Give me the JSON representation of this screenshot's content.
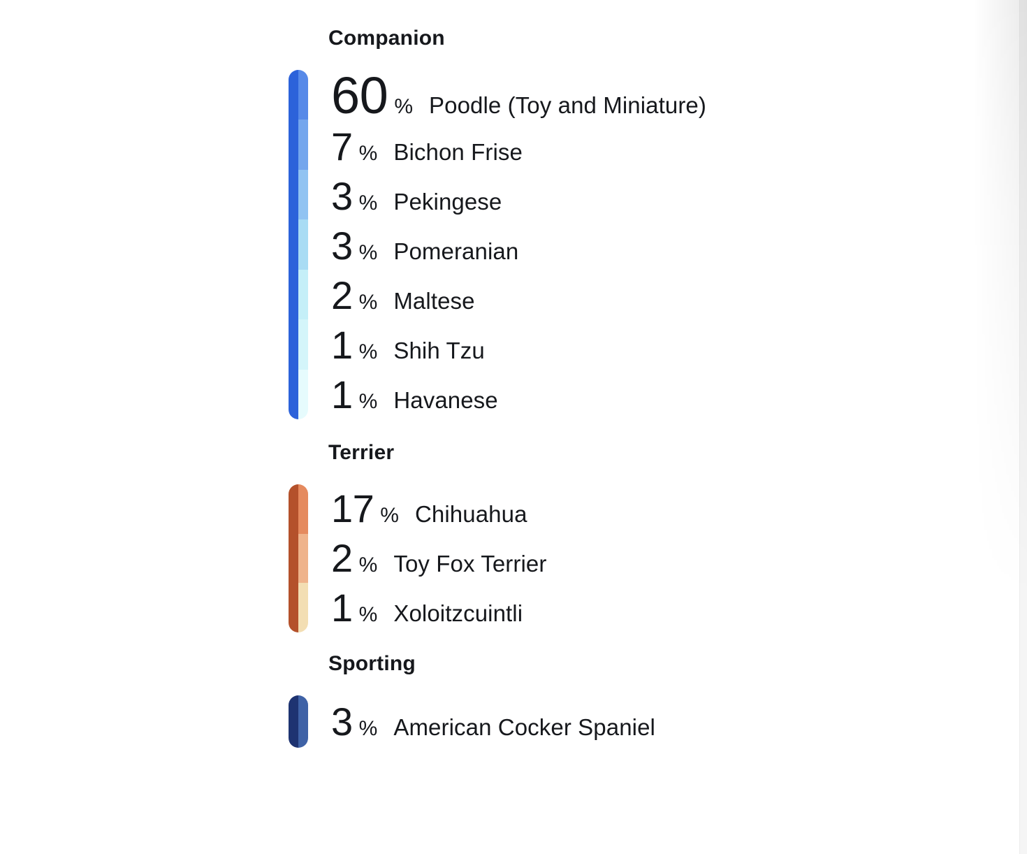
{
  "colors": {
    "text": "#16181c",
    "background": "#ffffff",
    "scrollbar_track": "#f5f5f5"
  },
  "chart_data": {
    "type": "bar",
    "orientation": "vertical segmented category bars with per-breed labels",
    "unit": "%",
    "legend_position": "inline-right-of-bar",
    "sections": [
      {
        "label": "Companion",
        "bar_color": "#2C62DA",
        "breeds": [
          {
            "value": 60,
            "unit": "%",
            "name": "Poodle (Toy and Miniature)",
            "swatch": "#5689E8"
          },
          {
            "value": 7,
            "unit": "%",
            "name": "Bichon Frise",
            "swatch": "#74A6ED"
          },
          {
            "value": 3,
            "unit": "%",
            "name": "Pekingese",
            "swatch": "#91C3F2"
          },
          {
            "value": 3,
            "unit": "%",
            "name": "Pomeranian",
            "swatch": "#A9DCF4"
          },
          {
            "value": 2,
            "unit": "%",
            "name": "Maltese",
            "swatch": "#C5EFF8"
          },
          {
            "value": 1,
            "unit": "%",
            "name": "Shih Tzu",
            "swatch": "#D4F5FA"
          },
          {
            "value": 1,
            "unit": "%",
            "name": "Havanese",
            "swatch": "#E6FBFD"
          }
        ]
      },
      {
        "label": "Terrier",
        "bar_color": "#B4512B",
        "breeds": [
          {
            "value": 17,
            "unit": "%",
            "name": "Chihuahua",
            "swatch": "#E58A5E"
          },
          {
            "value": 2,
            "unit": "%",
            "name": "Toy Fox Terrier",
            "swatch": "#EFB38B"
          },
          {
            "value": 1,
            "unit": "%",
            "name": "Xoloitzcuintli",
            "swatch": "#F3DEB3"
          }
        ]
      },
      {
        "label": "Sporting",
        "bar_color": "#1E3371",
        "breeds": [
          {
            "value": 3,
            "unit": "%",
            "name": "American Cocker Spaniel",
            "swatch": "#3F62A6"
          }
        ]
      }
    ]
  }
}
